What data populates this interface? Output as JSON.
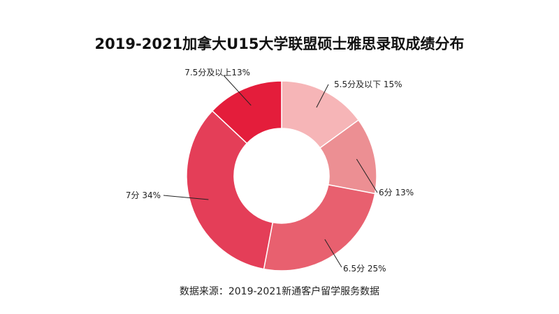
{
  "title": "2019-2021加拿大U15大学联盟硕士雅思录取成绩分布",
  "source": "数据来源：2019-2021新通客户留学服务数据",
  "chart_data": {
    "type": "pie",
    "variant": "donut",
    "title": "2019-2021加拿大U15大学联盟硕士雅思录取成绩分布",
    "categories": [
      "5.5分及以下",
      "6分",
      "6.5分",
      "7分",
      "7.5分及以上"
    ],
    "values": [
      15,
      13,
      25,
      34,
      13
    ],
    "labels": [
      "5.5分及以下 15%",
      "6分 13%",
      "6.5分 25%",
      "7分 34%",
      "7.5分及以上13%"
    ],
    "colors": [
      "#f6b5b7",
      "#ec8f93",
      "#e8606f",
      "#e43e58",
      "#e41d3b"
    ],
    "legend": "none"
  }
}
